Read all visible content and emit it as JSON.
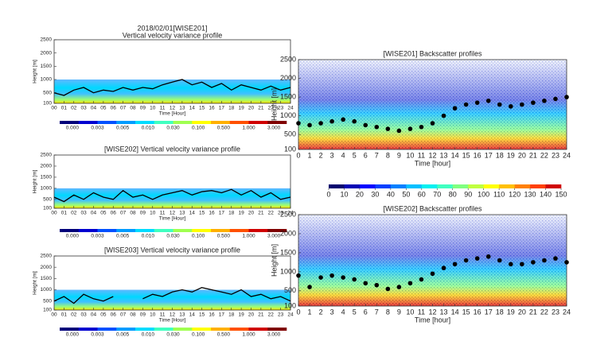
{
  "chart_data": [
    {
      "type": "heatmap",
      "title": "2018/02/01[WISE201]",
      "subtitle": "Vertical velocity variance profile",
      "xlabel": "Time [Hour]",
      "ylabel": "Height [m]",
      "xlim": [
        0,
        24
      ],
      "ylim": [
        100,
        2500
      ],
      "yticks": [
        100,
        500,
        1000,
        1500,
        2000,
        2500
      ],
      "xticks": [
        {
          "value": 0,
          "label": "00"
        },
        {
          "value": 1,
          "label": "01"
        },
        {
          "value": 2,
          "label": "02"
        },
        {
          "value": 3,
          "label": "03"
        },
        {
          "value": 4,
          "label": "04"
        },
        {
          "value": 5,
          "label": "05"
        },
        {
          "value": 6,
          "label": "06"
        },
        {
          "value": 7,
          "label": "07"
        },
        {
          "value": 8,
          "label": "08"
        },
        {
          "value": 9,
          "label": "09"
        },
        10,
        11,
        12,
        13,
        14,
        15,
        16,
        17,
        18,
        19,
        20,
        21,
        22,
        23,
        24
      ],
      "x": [
        0,
        1,
        2,
        3,
        4,
        5,
        6,
        7,
        8,
        9,
        10,
        11,
        12,
        13,
        14,
        15,
        16,
        17,
        18,
        19,
        20,
        21,
        22,
        23,
        24
      ],
      "series": [
        {
          "color": "#000000",
          "marker": "line",
          "values": [
            500,
            400,
            600,
            700,
            500,
            600,
            550,
            700,
            600,
            700,
            650,
            800,
            900,
            1000,
            800,
            900,
            700,
            850,
            600,
            800,
            700,
            600,
            750,
            600,
            700
          ]
        }
      ],
      "colorbar": {
        "colors": [
          "#00007a",
          "#0000d0",
          "#0050ff",
          "#009cff",
          "#00dcff",
          "#40ffc0",
          "#a0ff50",
          "#ffff00",
          "#ffb000",
          "#ff5000",
          "#d00000",
          "#800000"
        ],
        "labels": [
          "0.000",
          "0.003",
          "0.005",
          "0.010",
          "0.030",
          "0.100",
          "0.500",
          "1.000",
          "3.000"
        ]
      }
    },
    {
      "type": "heatmap",
      "title": "[WISE202] Vertical velocity variance profile",
      "xlabel": "Time [Hour]",
      "ylabel": "Height [m]",
      "xlim": [
        0,
        24
      ],
      "ylim": [
        100,
        2500
      ],
      "yticks": [
        100,
        500,
        1000,
        1500,
        2000,
        2500
      ],
      "xticks": [
        {
          "value": 0,
          "label": "00"
        },
        {
          "value": 1,
          "label": "01"
        },
        {
          "value": 2,
          "label": "02"
        },
        {
          "value": 3,
          "label": "03"
        },
        {
          "value": 4,
          "label": "04"
        },
        {
          "value": 5,
          "label": "05"
        },
        {
          "value": 6,
          "label": "06"
        },
        {
          "value": 7,
          "label": "07"
        },
        {
          "value": 8,
          "label": "08"
        },
        {
          "value": 9,
          "label": "09"
        },
        10,
        11,
        12,
        13,
        14,
        15,
        16,
        17,
        18,
        19,
        20,
        21,
        22,
        23,
        24
      ],
      "x": [
        0,
        1,
        2,
        3,
        4,
        5,
        6,
        7,
        8,
        9,
        10,
        11,
        12,
        13,
        14,
        15,
        16,
        17,
        18,
        19,
        20,
        21,
        22,
        23,
        24
      ],
      "series": [
        {
          "color": "#000000",
          "marker": "line",
          "values": [
            600,
            400,
            700,
            500,
            800,
            600,
            500,
            900,
            600,
            700,
            500,
            700,
            800,
            900,
            700,
            850,
            900,
            800,
            950,
            700,
            900,
            600,
            800,
            500,
            600
          ]
        }
      ],
      "colorbar": {
        "colors": [
          "#00007a",
          "#0000d0",
          "#0050ff",
          "#009cff",
          "#00dcff",
          "#40ffc0",
          "#a0ff50",
          "#ffff00",
          "#ffb000",
          "#ff5000",
          "#d00000",
          "#800000"
        ],
        "labels": [
          "0.000",
          "0.003",
          "0.005",
          "0.010",
          "0.030",
          "0.100",
          "0.500",
          "1.000",
          "3.000"
        ]
      }
    },
    {
      "type": "heatmap",
      "title": "[WISE203] Vertical velocity variance profile",
      "xlabel": "Time [Hour]",
      "ylabel": "Height [m]",
      "xlim": [
        0,
        24
      ],
      "ylim": [
        100,
        2500
      ],
      "yticks": [
        100,
        500,
        1000,
        1500,
        2000,
        2500
      ],
      "xticks": [
        {
          "value": 0,
          "label": "00"
        },
        {
          "value": 1,
          "label": "01"
        },
        {
          "value": 2,
          "label": "02"
        },
        {
          "value": 3,
          "label": "03"
        },
        {
          "value": 4,
          "label": "04"
        },
        {
          "value": 5,
          "label": "05"
        },
        {
          "value": 6,
          "label": "06"
        },
        {
          "value": 7,
          "label": "07"
        },
        {
          "value": 8,
          "label": "08"
        },
        {
          "value": 9,
          "label": "09"
        },
        10,
        11,
        12,
        13,
        14,
        15,
        16,
        17,
        18,
        19,
        20,
        21,
        22,
        23,
        24
      ],
      "x": [
        0,
        1,
        2,
        3,
        4,
        5,
        6,
        7,
        8,
        9,
        10,
        11,
        12,
        13,
        14,
        15,
        16,
        17,
        18,
        19,
        20,
        21,
        22,
        23,
        24
      ],
      "series": [
        {
          "color": "#000000",
          "marker": "line",
          "values": [
            500,
            700,
            400,
            800,
            600,
            500,
            700,
            null,
            null,
            600,
            800,
            700,
            900,
            1000,
            900,
            1100,
            1000,
            900,
            800,
            1000,
            700,
            800,
            600,
            700,
            500
          ]
        }
      ],
      "colorbar": {
        "colors": [
          "#00007a",
          "#0000d0",
          "#0050ff",
          "#009cff",
          "#00dcff",
          "#40ffc0",
          "#a0ff50",
          "#ffff00",
          "#ffb000",
          "#ff5000",
          "#d00000",
          "#800000"
        ],
        "labels": [
          "0.000",
          "0.003",
          "0.005",
          "0.010",
          "0.030",
          "0.100",
          "0.500",
          "1.000",
          "3.000"
        ]
      }
    },
    {
      "type": "heatmap",
      "title": "[WISE201] Backscatter profiles",
      "xlabel": "Time [hour]",
      "ylabel": "Height [m]",
      "xlim": [
        0,
        24
      ],
      "ylim": [
        100,
        2500
      ],
      "yticks": [
        100,
        500,
        1000,
        1500,
        2000,
        2500
      ],
      "xticks": [
        0,
        1,
        2,
        3,
        4,
        5,
        6,
        7,
        8,
        9,
        10,
        11,
        12,
        13,
        14,
        15,
        16,
        17,
        18,
        19,
        20,
        21,
        22,
        23,
        24
      ],
      "x": [
        0,
        1,
        2,
        3,
        4,
        5,
        6,
        7,
        8,
        9,
        10,
        11,
        12,
        13,
        14,
        15,
        16,
        17,
        18,
        19,
        20,
        21,
        22,
        23,
        24
      ],
      "series": [
        {
          "color": "#000000",
          "marker": "dot",
          "values": [
            800,
            750,
            800,
            850,
            900,
            850,
            750,
            700,
            650,
            600,
            650,
            700,
            800,
            1000,
            1200,
            1300,
            1350,
            1400,
            1300,
            1250,
            1300,
            1350,
            1400,
            1450,
            1500
          ]
        }
      ],
      "colorbar": {
        "colors": [
          "#00006e",
          "#0000b4",
          "#0000ff",
          "#0040ff",
          "#0080ff",
          "#00c0ff",
          "#00f0f0",
          "#40ffc0",
          "#80ff80",
          "#c0ff40",
          "#ffff00",
          "#ffc000",
          "#ff8000",
          "#ff4000",
          "#d00000"
        ],
        "ticks": [
          0,
          10,
          20,
          30,
          40,
          50,
          60,
          70,
          80,
          90,
          100,
          110,
          120,
          130,
          140,
          150
        ]
      }
    },
    {
      "type": "heatmap",
      "title": "[WISE202] Backscatter profiles",
      "xlabel": "Time [hour]",
      "ylabel": "Height [m]",
      "xlim": [
        0,
        24
      ],
      "ylim": [
        100,
        2500
      ],
      "yticks": [
        100,
        500,
        1000,
        1500,
        2000,
        2500
      ],
      "xticks": [
        0,
        1,
        2,
        3,
        4,
        5,
        6,
        7,
        8,
        9,
        10,
        11,
        12,
        13,
        14,
        15,
        16,
        17,
        18,
        19,
        20,
        21,
        22,
        23,
        24
      ],
      "x": [
        0,
        1,
        2,
        3,
        4,
        5,
        6,
        7,
        8,
        9,
        10,
        11,
        12,
        13,
        14,
        15,
        16,
        17,
        18,
        19,
        20,
        21,
        22,
        23,
        24
      ],
      "series": [
        {
          "color": "#000000",
          "marker": "dot",
          "values": [
            900,
            600,
            850,
            900,
            850,
            800,
            700,
            650,
            550,
            600,
            700,
            800,
            950,
            1100,
            1200,
            1300,
            1350,
            1400,
            1300,
            1200,
            1200,
            1250,
            1300,
            1350,
            1250
          ]
        }
      ]
    }
  ]
}
